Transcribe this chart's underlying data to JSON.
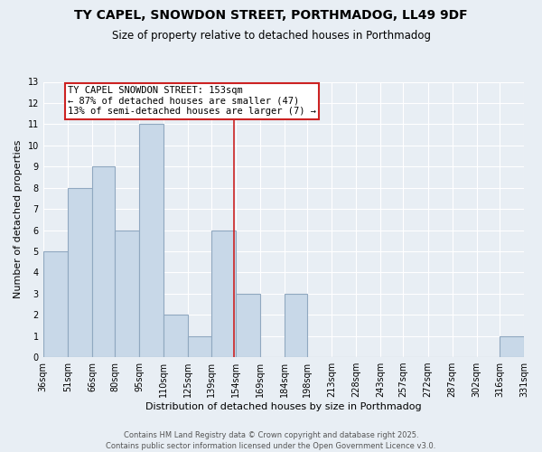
{
  "title": "TY CAPEL, SNOWDON STREET, PORTHMADOG, LL49 9DF",
  "subtitle": "Size of property relative to detached houses in Porthmadog",
  "xlabel": "Distribution of detached houses by size in Porthmadog",
  "ylabel": "Number of detached properties",
  "bar_color": "#c8d8e8",
  "bar_edge_color": "#90a8c0",
  "background_color": "#e8eef4",
  "plot_bg_color": "#e8eef4",
  "grid_color": "#ffffff",
  "vline_color": "#cc2222",
  "vline_x": 153,
  "bins": [
    36,
    51,
    66,
    80,
    95,
    110,
    125,
    139,
    154,
    169,
    184,
    198,
    213,
    228,
    243,
    257,
    272,
    287,
    302,
    316,
    331
  ],
  "bin_labels": [
    "36sqm",
    "51sqm",
    "66sqm",
    "80sqm",
    "95sqm",
    "110sqm",
    "125sqm",
    "139sqm",
    "154sqm",
    "169sqm",
    "184sqm",
    "198sqm",
    "213sqm",
    "228sqm",
    "243sqm",
    "257sqm",
    "272sqm",
    "287sqm",
    "302sqm",
    "316sqm",
    "331sqm"
  ],
  "counts": [
    5,
    8,
    9,
    6,
    11,
    2,
    1,
    6,
    3,
    0,
    3,
    0,
    0,
    0,
    0,
    0,
    0,
    0,
    0,
    1
  ],
  "ylim": [
    0,
    13
  ],
  "yticks": [
    0,
    1,
    2,
    3,
    4,
    5,
    6,
    7,
    8,
    9,
    10,
    11,
    12,
    13
  ],
  "annotation_title": "TY CAPEL SNOWDON STREET: 153sqm",
  "annotation_line1": "← 87% of detached houses are smaller (47)",
  "annotation_line2": "13% of semi-detached houses are larger (7) →",
  "annotation_box_color": "white",
  "annotation_border_color": "#cc2222",
  "footer1": "Contains HM Land Registry data © Crown copyright and database right 2025.",
  "footer2": "Contains public sector information licensed under the Open Government Licence v3.0.",
  "title_fontsize": 10,
  "subtitle_fontsize": 8.5,
  "axis_label_fontsize": 8,
  "tick_fontsize": 7,
  "annotation_fontsize": 7.5,
  "footer_fontsize": 6
}
